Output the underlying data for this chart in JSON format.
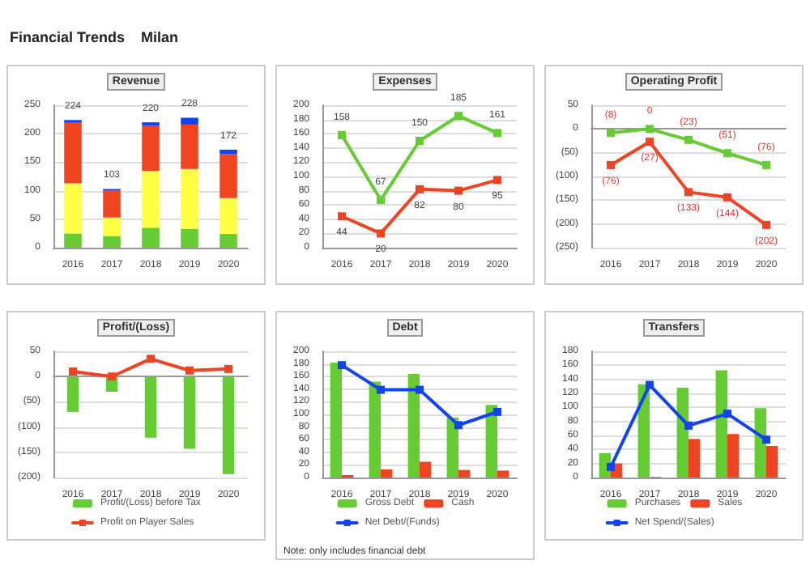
{
  "chart_data": [
    {
      "type": "other",
      "title": "Financial Trends    Milan"
    },
    {
      "type": "bar",
      "title": "Revenue",
      "categories": [
        "2016",
        "2017",
        "2018",
        "2019",
        "2020"
      ],
      "stacked": true,
      "series": [
        {
          "color": "#66cc33",
          "values": [
            25,
            20,
            35,
            33,
            24
          ]
        },
        {
          "color": "#ffff44",
          "values": [
            88,
            33,
            100,
            105,
            63
          ]
        },
        {
          "color": "#ee4422",
          "values": [
            107,
            48,
            79,
            78,
            77
          ]
        },
        {
          "color": "#1144ee",
          "values": [
            4,
            2,
            6,
            12,
            8
          ]
        }
      ],
      "totals": [
        "224",
        "103",
        "220",
        "228",
        "172"
      ],
      "ylim": [
        0,
        250
      ],
      "yticks": [
        0,
        50,
        100,
        150,
        200,
        250
      ],
      "grid": "y"
    },
    {
      "type": "line",
      "title": "Expenses",
      "categories": [
        "2016",
        "2017",
        "2018",
        "2019",
        "2020"
      ],
      "series": [
        {
          "color": "#66cc33",
          "values": [
            158,
            67,
            150,
            185,
            161
          ]
        },
        {
          "color": "#ee4422",
          "values": [
            44,
            20,
            82,
            80,
            95
          ]
        }
      ],
      "data_labels": true,
      "ylim": [
        0,
        200
      ],
      "yticks": [
        0,
        20,
        40,
        60,
        80,
        100,
        120,
        140,
        160,
        180,
        200
      ],
      "grid": "y",
      "marker": "square"
    },
    {
      "type": "line",
      "title": "Operating Profit",
      "categories": [
        "2016",
        "2017",
        "2018",
        "2019",
        "2020"
      ],
      "series": [
        {
          "color": "#66cc33",
          "values": [
            -8,
            0,
            -23,
            -51,
            -76
          ],
          "value_labels": [
            "(8)",
            "0",
            "(23)",
            "(51)",
            "(76)"
          ]
        },
        {
          "color": "#ee4422",
          "values": [
            -76,
            -27,
            -133,
            -144,
            -202
          ],
          "value_labels": [
            "(76)",
            "(27)",
            "(133)",
            "(144)",
            "(202)"
          ]
        }
      ],
      "ylim": [
        -250,
        50
      ],
      "yticks": [
        {
          "value": -250,
          "label": "(250)"
        },
        {
          "value": -200,
          "label": "(200)"
        },
        {
          "value": -150,
          "label": "(150)"
        },
        {
          "value": -100,
          "label": "(100)"
        },
        {
          "value": -50,
          "label": "(50)"
        },
        0,
        50
      ],
      "grid": "y",
      "marker": "square"
    },
    {
      "type": "bar",
      "title": "Profit/(Loss)",
      "categories": [
        "2016",
        "2017",
        "2018",
        "2019",
        "2020"
      ],
      "series": [
        {
          "name": "Profit/(Loss) before Tax",
          "color": "#66cc33",
          "values": [
            -70,
            -30,
            -121,
            -143,
            -193
          ]
        },
        {
          "name": "Profit on Player Sales",
          "type": "line",
          "color": "#ee4422",
          "values": [
            10,
            0,
            35,
            12,
            15
          ]
        }
      ],
      "ylim": [
        -200,
        50
      ],
      "yticks": [
        {
          "value": -200,
          "label": "(200)"
        },
        {
          "value": -150,
          "label": "(150)"
        },
        {
          "value": -100,
          "label": "(100)"
        },
        {
          "value": -50,
          "label": "(50)"
        },
        0,
        50
      ],
      "grid": "y",
      "legend": "bottom",
      "marker": "square"
    },
    {
      "type": "bar",
      "title": "Debt",
      "categories": [
        "2016",
        "2017",
        "2018",
        "2019",
        "2020"
      ],
      "series": [
        {
          "name": "Gross Debt",
          "color": "#66cc33",
          "values": [
            182,
            152,
            164,
            95,
            115
          ]
        },
        {
          "name": "Cash",
          "color": "#ee4422",
          "values": [
            4,
            13,
            25,
            12,
            11
          ]
        },
        {
          "name": "Net Debt/(Funds)",
          "type": "line",
          "color": "#1144ee",
          "values": [
            178,
            139,
            139,
            83,
            104
          ]
        }
      ],
      "ylim": [
        0,
        200
      ],
      "yticks": [
        0,
        20,
        40,
        60,
        80,
        100,
        120,
        140,
        160,
        180,
        200
      ],
      "grid": "y",
      "legend": "bottom",
      "marker": "square",
      "annotations": [
        "Note: only includes financial debt"
      ]
    },
    {
      "type": "bar",
      "title": "Transfers",
      "categories": [
        "2016",
        "2017",
        "2018",
        "2019",
        "2020"
      ],
      "series": [
        {
          "name": "Purchases",
          "color": "#66cc33",
          "values": [
            35,
            133,
            128,
            153,
            99
          ]
        },
        {
          "name": "Sales",
          "color": "#ee4422",
          "values": [
            20,
            1,
            55,
            62,
            45
          ]
        },
        {
          "name": "Net Spend/(Sales)",
          "type": "line",
          "color": "#1144ee",
          "values": [
            15,
            132,
            74,
            91,
            54
          ]
        }
      ],
      "ylim": [
        0,
        180
      ],
      "yticks": [
        0,
        20,
        40,
        60,
        80,
        100,
        120,
        140,
        160,
        180
      ],
      "grid": "y",
      "legend": "bottom",
      "marker": "square"
    }
  ]
}
